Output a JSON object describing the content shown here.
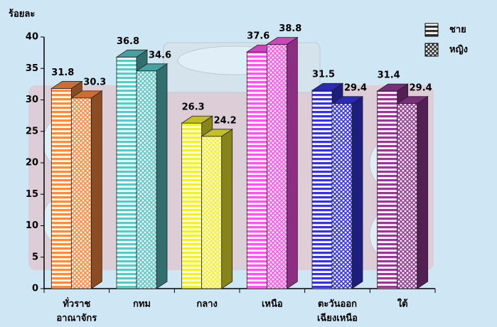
{
  "chart_data": {
    "type": "bar3d",
    "y_label": "ร้อยละ",
    "categories": [
      [
        "ทั่วราช",
        "อาณาจักร"
      ],
      [
        "กทม"
      ],
      [
        "กลาง"
      ],
      [
        "เหนือ"
      ],
      [
        "ตะวันออก",
        "เฉียงเหนือ"
      ],
      [
        "ใต้"
      ]
    ],
    "category_colors": [
      "#ff8a3d",
      "#5cc8c8",
      "#f4f030",
      "#ff55ee",
      "#3434e0",
      "#963a96"
    ],
    "series": [
      {
        "name": "ชาย",
        "color": "#1010d0",
        "pattern": "horizontal",
        "values": [
          31.8,
          36.8,
          26.3,
          37.6,
          31.5,
          31.4
        ]
      },
      {
        "name": "หญิง",
        "color": "#e010d0",
        "pattern": "crosshatch",
        "values": [
          30.3,
          34.6,
          24.2,
          38.8,
          29.4,
          29.4
        ]
      }
    ],
    "ylim": [
      0,
      40
    ],
    "yticks": [
      0,
      5,
      10,
      15,
      20,
      25,
      30,
      35,
      40
    ]
  }
}
